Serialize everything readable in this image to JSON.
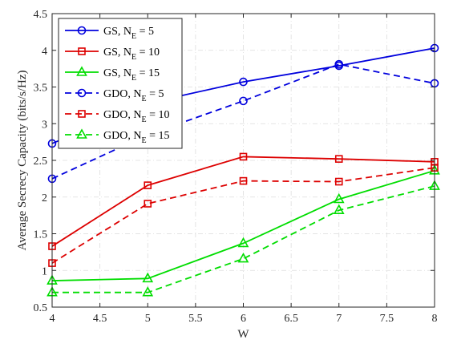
{
  "chart_data": {
    "type": "line",
    "xlabel": "W",
    "ylabel": "Average Secrecy Capacity (bits/s/Hz)",
    "xlim": [
      4,
      8
    ],
    "ylim": [
      0.5,
      4.5
    ],
    "x_ticks": [
      "4",
      "4.5",
      "5",
      "5.5",
      "6",
      "6.5",
      "7",
      "7.5",
      "8"
    ],
    "y_ticks": [
      "0.5",
      "1",
      "1.5",
      "2",
      "2.5",
      "3",
      "3.5",
      "4",
      "4.5"
    ],
    "grid": true,
    "legend_position": "top-left",
    "x": [
      4,
      5,
      6,
      7,
      8
    ],
    "series": [
      {
        "name": "GS, N_E = 5",
        "label_main": "GS, N",
        "label_sub": "E",
        "label_tail": " = 5",
        "color": "#0000dd",
        "dash": "solid",
        "marker": "circle",
        "values": [
          2.73,
          3.28,
          3.57,
          3.79,
          4.03
        ]
      },
      {
        "name": "GS, N_E = 10",
        "label_main": "GS, N",
        "label_sub": "E",
        "label_tail": " = 10",
        "color": "#dd0000",
        "dash": "solid",
        "marker": "square",
        "values": [
          1.33,
          2.16,
          2.55,
          2.52,
          2.48
        ]
      },
      {
        "name": "GS, N_E = 15",
        "label_main": "GS, N",
        "label_sub": "E",
        "label_tail": " = 15",
        "color": "#00dd00",
        "dash": "solid",
        "marker": "triangle",
        "values": [
          0.86,
          0.89,
          1.37,
          1.97,
          2.36
        ]
      },
      {
        "name": "GDO, N_E = 5",
        "label_main": "GDO, N",
        "label_sub": "E",
        "label_tail": " = 5",
        "color": "#0000dd",
        "dash": "dashed",
        "marker": "circle",
        "values": [
          2.25,
          2.85,
          3.31,
          3.81,
          3.55
        ]
      },
      {
        "name": "GDO, N_E = 10",
        "label_main": "GDO, N",
        "label_sub": "E",
        "label_tail": " = 10",
        "color": "#dd0000",
        "dash": "dashed",
        "marker": "square",
        "values": [
          1.1,
          1.91,
          2.22,
          2.21,
          2.4
        ]
      },
      {
        "name": "GDO, N_E = 15",
        "label_main": "GDO, N",
        "label_sub": "E",
        "label_tail": " = 15",
        "color": "#00dd00",
        "dash": "dashed",
        "marker": "triangle",
        "values": [
          0.7,
          0.7,
          1.16,
          1.82,
          2.15
        ]
      }
    ]
  }
}
